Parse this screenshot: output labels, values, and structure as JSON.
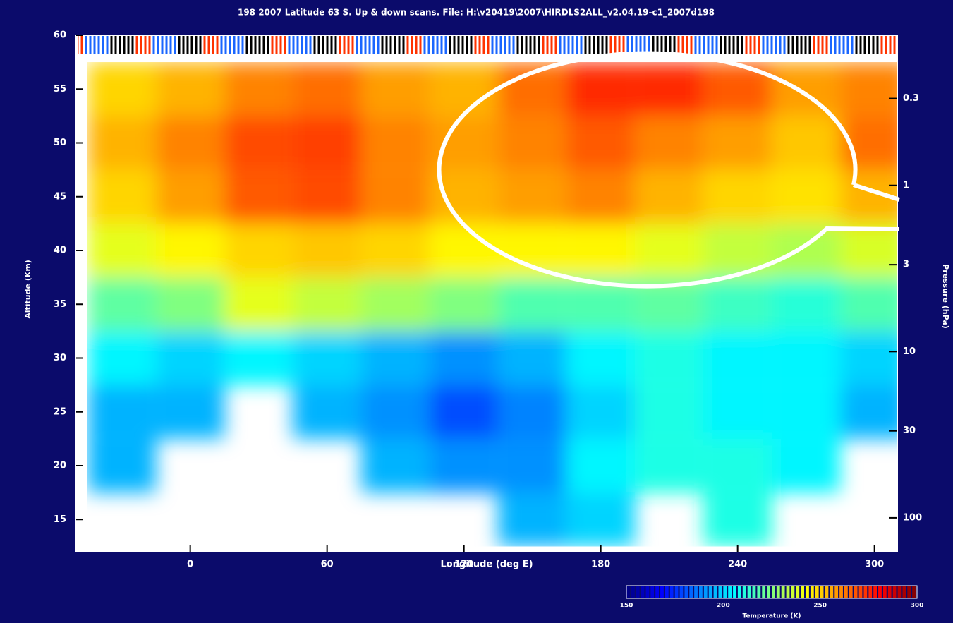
{
  "chart_data": {
    "type": "contour",
    "title": "198 2007   Latitude 63 S.   Up & down scans. File: H:\\v20419\\2007\\HIRDLS2ALL_v2.04.19-c1_2007d198",
    "x_label": "Longitude (deg E)",
    "y_label": "Altitude (Km)",
    "y2_label": "Pressure (hPa)",
    "colorbar_label": "Temperature (K)",
    "colormap": "jet",
    "x": [
      -30,
      0,
      30,
      60,
      90,
      120,
      150,
      180,
      210,
      240,
      270,
      300
    ],
    "y": [
      15,
      20,
      25,
      30,
      35,
      40,
      45,
      50,
      55
    ],
    "z": [
      [
        null,
        null,
        null,
        null,
        null,
        null,
        195,
        200,
        null,
        210,
        null,
        null
      ],
      [
        195,
        null,
        null,
        null,
        195,
        190,
        190,
        205,
        210,
        210,
        205,
        null
      ],
      [
        195,
        195,
        null,
        195,
        190,
        180,
        188,
        200,
        210,
        205,
        205,
        195
      ],
      [
        205,
        200,
        205,
        200,
        195,
        190,
        195,
        205,
        210,
        205,
        205,
        200
      ],
      [
        220,
        225,
        240,
        235,
        230,
        225,
        218,
        218,
        220,
        215,
        212,
        218
      ],
      [
        240,
        245,
        250,
        252,
        250,
        245,
        245,
        245,
        240,
        235,
        232,
        238
      ],
      [
        250,
        258,
        268,
        270,
        262,
        255,
        258,
        262,
        255,
        250,
        248,
        255
      ],
      [
        255,
        262,
        270,
        272,
        262,
        258,
        262,
        268,
        262,
        258,
        252,
        265
      ],
      [
        250,
        255,
        262,
        265,
        258,
        255,
        265,
        275,
        275,
        268,
        258,
        262
      ]
    ],
    "xlim": [
      -50,
      310
    ],
    "xticks": [
      0,
      60,
      120,
      180,
      240,
      300
    ],
    "ylim": [
      12,
      60
    ],
    "yticks": [
      15,
      20,
      25,
      30,
      35,
      40,
      45,
      50,
      55,
      60
    ],
    "y2lim": [
      0.125,
      160
    ],
    "y2_log": true,
    "y2ticks": [
      0.3,
      1,
      3,
      10,
      30,
      100
    ],
    "clim": [
      150,
      300
    ],
    "cticks": [
      150,
      200,
      250,
      300
    ]
  }
}
